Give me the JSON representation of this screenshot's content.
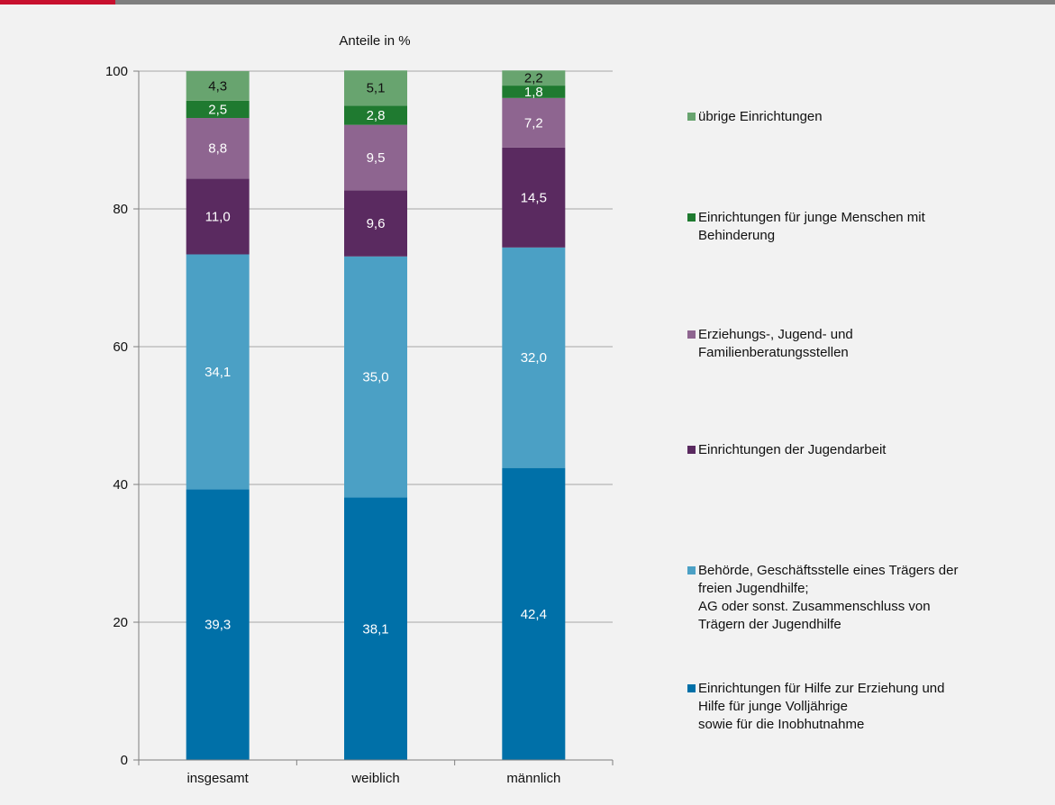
{
  "header": {
    "accent_color": "#c8102e"
  },
  "chart_data": {
    "type": "bar",
    "stacked": true,
    "title": "Anteile in %",
    "xlabel": "",
    "ylabel": "",
    "categories": [
      "insgesamt",
      "weiblich",
      "männlich"
    ],
    "ylim": [
      0,
      100
    ],
    "yticks": [
      "0",
      "20",
      "40",
      "60",
      "80",
      "100"
    ],
    "grid": true,
    "legend_position": "right",
    "series": [
      {
        "name": "Einrichtungen für Hilfe zur Erziehung und\nHilfe für junge Volljährige\nsowie für die Inobhutnahme",
        "values": [
          39.3,
          38.1,
          42.4
        ],
        "labels": [
          "39,3",
          "38,1",
          "42,4"
        ],
        "color": "#0070a8",
        "label_color": "#ffffff"
      },
      {
        "name": "Behörde, Geschäftsstelle eines Trägers der\nfreien Jugendhilfe;\nAG oder sonst. Zusammenschluss von\nTrägern der Jugendhilfe",
        "values": [
          34.1,
          35.0,
          32.0
        ],
        "labels": [
          "34,1",
          "35,0",
          "32,0"
        ],
        "color": "#4ba0c5",
        "label_color": "#ffffff"
      },
      {
        "name": "Einrichtungen der Jugendarbeit",
        "values": [
          11.0,
          9.6,
          14.5
        ],
        "labels": [
          "11,0",
          "9,6",
          "14,5"
        ],
        "color": "#5a2a60",
        "label_color": "#ffffff"
      },
      {
        "name": "Erziehungs-, Jugend- und\nFamilienberatungsstellen",
        "values": [
          8.8,
          9.5,
          7.2
        ],
        "labels": [
          "8,8",
          "9,5",
          "7,2"
        ],
        "color": "#8e6590",
        "label_color": "#ffffff"
      },
      {
        "name": "Einrichtungen für junge Menschen mit\nBehinderung",
        "values": [
          2.5,
          2.8,
          1.8
        ],
        "labels": [
          "2,5",
          "2,8",
          "1,8"
        ],
        "color": "#1f7a30",
        "label_color": "#ffffff"
      },
      {
        "name": "übrige Einrichtungen",
        "values": [
          4.3,
          5.1,
          2.2
        ],
        "labels": [
          "4,3",
          "5,1",
          "2,2"
        ],
        "color": "#68a46f",
        "label_color": "#111111"
      }
    ]
  }
}
